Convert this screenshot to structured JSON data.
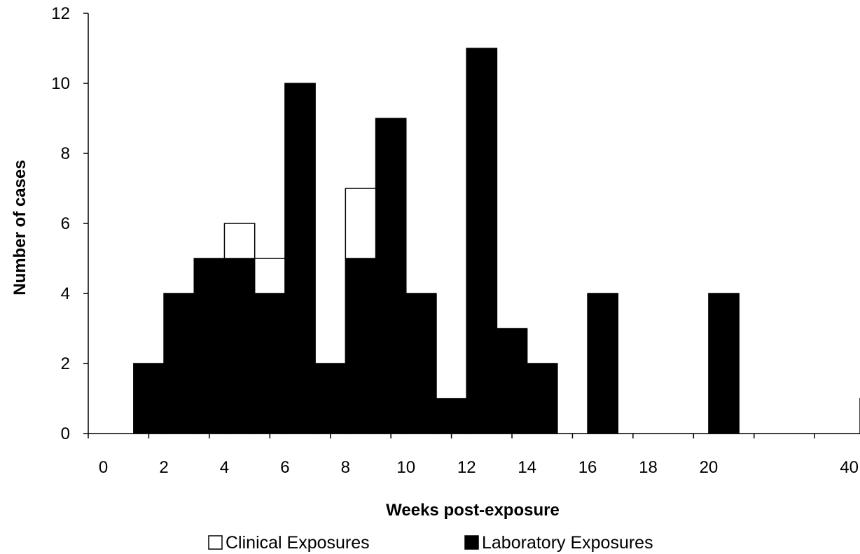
{
  "chart_data": {
    "type": "bar",
    "stacked": true,
    "categories": [
      "0",
      "1",
      "2",
      "3",
      "4",
      "5",
      "6",
      "7",
      "8",
      "9",
      "10",
      "11",
      "12",
      "13",
      "14",
      "15",
      "16",
      "17",
      "18",
      "19",
      "20",
      "",
      "",
      "",
      "",
      "40"
    ],
    "x_tick_labels": [
      "0",
      "2",
      "4",
      "6",
      "8",
      "10",
      "12",
      "14",
      "16",
      "18",
      "20",
      "40"
    ],
    "series": [
      {
        "name": "Laboratory Exposures",
        "color": "#000000",
        "values": [
          0,
          2,
          4,
          5,
          5,
          4,
          10,
          2,
          5,
          9,
          4,
          1,
          11,
          3,
          2,
          0,
          4,
          0,
          0,
          0,
          4,
          0,
          0,
          0,
          0,
          1
        ]
      },
      {
        "name": "Clinical Exposures",
        "color": "#ffffff",
        "values": [
          0,
          0,
          0,
          0,
          1,
          1,
          0,
          0,
          2,
          0,
          0,
          0,
          0,
          0,
          0,
          0,
          0,
          0,
          0,
          0,
          0,
          0,
          0,
          0,
          0,
          0
        ]
      }
    ],
    "xlabel": "Weeks post-exposure",
    "ylabel": "Number of cases",
    "ylim": [
      0,
      12
    ],
    "y_ticks": [
      "0",
      "2",
      "4",
      "6",
      "8",
      "10",
      "12"
    ],
    "grid": false,
    "legend_position": "bottom"
  }
}
